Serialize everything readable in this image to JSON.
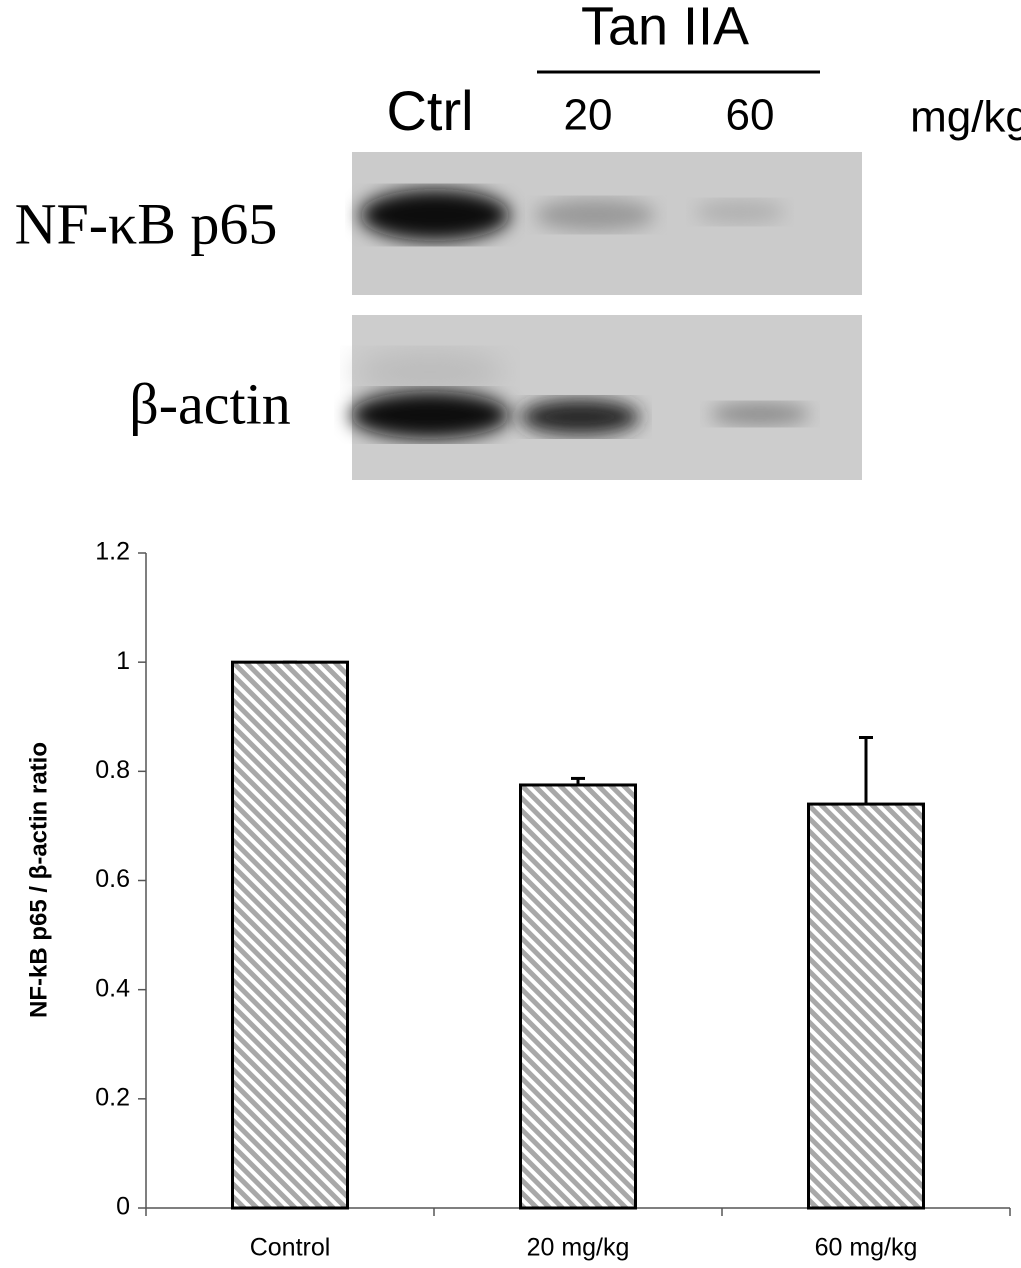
{
  "blot": {
    "group_label": "Tan IIA",
    "lane_labels": [
      "Ctrl",
      "20",
      "60"
    ],
    "unit": "mg/kg",
    "row_labels": [
      "NF-κB p65",
      "β-actin"
    ]
  },
  "chart_data": {
    "type": "bar",
    "y_label": "NF-kB p65 / β-actin ratio",
    "categories": [
      "Control",
      "20 mg/kg",
      "60 mg/kg"
    ],
    "values": [
      1,
      0.775,
      0.74
    ],
    "errors": [
      0,
      0.012,
      0.122
    ],
    "ylim": [
      0,
      1.2
    ],
    "yticks": [
      0,
      0.2,
      0.4,
      0.6,
      0.8,
      1,
      1.2
    ]
  }
}
